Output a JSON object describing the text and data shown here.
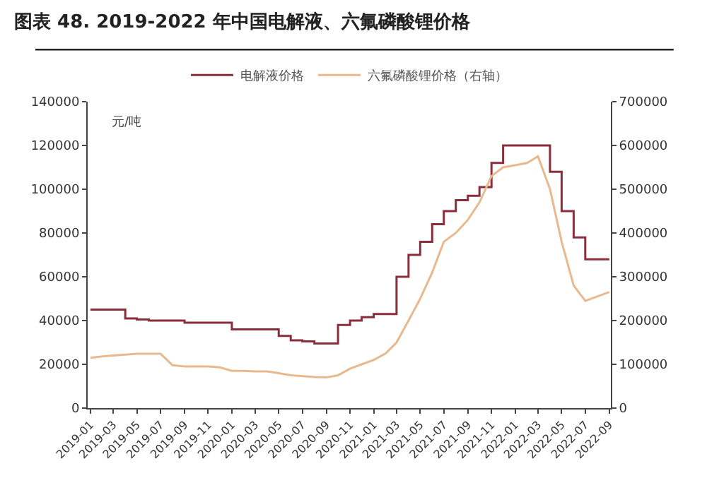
{
  "chart_data": {
    "type": "step",
    "title": "图表 48. 2019-2022 年中国电解液、六氟磷酸锂价格",
    "ylabel": "元/吨",
    "x": [
      "2019-01",
      "2019-02",
      "2019-03",
      "2019-04",
      "2019-05",
      "2019-06",
      "2019-07",
      "2019-08",
      "2019-09",
      "2019-10",
      "2019-11",
      "2019-12",
      "2020-01",
      "2020-02",
      "2020-03",
      "2020-04",
      "2020-05",
      "2020-06",
      "2020-07",
      "2020-08",
      "2020-09",
      "2020-10",
      "2020-11",
      "2020-12",
      "2021-01",
      "2021-02",
      "2021-03",
      "2021-04",
      "2021-05",
      "2021-06",
      "2021-07",
      "2021-08",
      "2021-09",
      "2021-10",
      "2021-11",
      "2021-12",
      "2022-01",
      "2022-02",
      "2022-03",
      "2022-04",
      "2022-05",
      "2022-06",
      "2022-07",
      "2022-08",
      "2022-09"
    ],
    "series": [
      {
        "name": "电解液价格",
        "color": "#8b2e3c",
        "values": [
          45000,
          45000,
          45000,
          41000,
          40500,
          40000,
          40000,
          40000,
          39000,
          39000,
          39000,
          39000,
          36000,
          36000,
          36000,
          36000,
          33000,
          31000,
          30500,
          29500,
          29500,
          38000,
          40000,
          41500,
          43000,
          43000,
          60000,
          70000,
          76000,
          84000,
          90000,
          95000,
          97000,
          101000,
          112000,
          120000,
          120000,
          120000,
          120000,
          108000,
          90000,
          78000,
          68000,
          68000,
          68000
        ]
      },
      {
        "name": "六氟磷酸锂价格（右轴）",
        "type": "line",
        "axis": "y2",
        "color": "#e8b98e",
        "values": [
          115000,
          118000,
          120000,
          122000,
          124000,
          124000,
          124000,
          98000,
          95000,
          95000,
          95000,
          93000,
          85000,
          85000,
          84000,
          84000,
          80000,
          75000,
          73000,
          71000,
          70000,
          75000,
          90000,
          100000,
          110000,
          125000,
          150000,
          200000,
          250000,
          310000,
          380000,
          400000,
          430000,
          470000,
          530000,
          550000,
          555000,
          560000,
          575000,
          500000,
          380000,
          280000,
          245000,
          255000,
          265000
        ]
      }
    ],
    "xlim": [
      "2018-12-25",
      "2022-09-05"
    ],
    "xticks": [
      {
        "value": "2019-01",
        "label": "2019-01"
      },
      {
        "value": "2019-03",
        "label": "2019-03"
      },
      {
        "value": "2019-05",
        "label": "2019-05"
      },
      {
        "value": "2019-07",
        "label": "2019-07"
      },
      {
        "value": "2019-09",
        "label": "2019-09"
      },
      {
        "value": "2019-11",
        "label": "2019-11"
      },
      {
        "value": "2020-01",
        "label": "2020-01"
      },
      {
        "value": "2020-03",
        "label": "2020-03"
      },
      {
        "value": "2020-05",
        "label": "2020-05"
      },
      {
        "value": "2020-07",
        "label": "2020-07"
      },
      {
        "value": "2020-09",
        "label": "2020-09"
      },
      {
        "value": "2020-11",
        "label": "2020-11"
      },
      {
        "value": "2021-01",
        "label": "2021-01"
      },
      {
        "value": "2021-03",
        "label": "2021-03"
      },
      {
        "value": "2021-05",
        "label": "2021-05"
      },
      {
        "value": "2021-07",
        "label": "2021-07"
      },
      {
        "value": "2021-09",
        "label": "2021-09"
      },
      {
        "value": "2021-11",
        "label": "2021-11"
      },
      {
        "value": "2022-01",
        "label": "2022-01"
      },
      {
        "value": "2022-03",
        "label": "2022-03"
      },
      {
        "value": "2022-05",
        "label": "2022-05"
      },
      {
        "value": "2022-07",
        "label": "2022-07"
      },
      {
        "value": "2022-09",
        "label": "2022-09"
      }
    ],
    "ylim": [
      0,
      140000
    ],
    "yticks": [
      0,
      20000,
      40000,
      60000,
      80000,
      100000,
      120000,
      140000
    ],
    "y2lim": [
      0,
      700000
    ],
    "y2ticks": [
      0,
      100000,
      200000,
      300000,
      400000,
      500000,
      600000,
      700000
    ],
    "legend": "top",
    "marker": "none",
    "line_style": "solid"
  }
}
